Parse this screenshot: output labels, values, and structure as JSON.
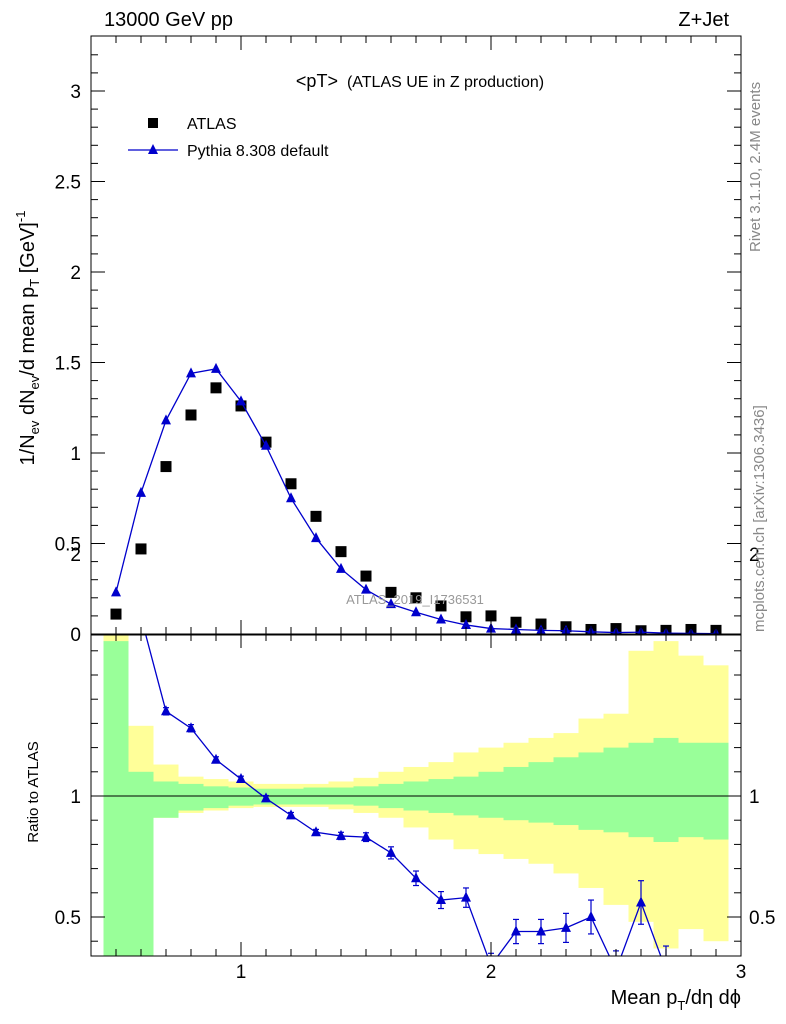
{
  "header": {
    "left": "13000 GeV pp",
    "right": "Z+Jet"
  },
  "side_texts": {
    "rivet": "Rivet 3.1.10,  2.4M events",
    "mcplots": "mcplots.cern.ch [arXiv:1306.3436]"
  },
  "watermark": "ATLAS_2019_I1736531",
  "chart_data": [
    {
      "type": "scatter",
      "panel": "main",
      "title": "<pT> (ATLAS UE in Z production)",
      "title_main": "<pT>",
      "title_sub": "(ATLAS UE in Z production)",
      "ylabel_parts": [
        "1/N",
        "ev",
        " dN",
        "ev",
        "/d mean p",
        "T",
        " [GeV]",
        "-1"
      ],
      "xlim": [
        0.4,
        3.0
      ],
      "ylim": [
        0,
        3.3
      ],
      "y_ticks": [
        0,
        0.5,
        1,
        1.5,
        2,
        2.5,
        3
      ],
      "y_tick_labels": [
        "0",
        "0.5",
        "1",
        "1.5",
        "2",
        "2.5",
        "3"
      ],
      "legend": {
        "position": "top-left",
        "entries": [
          "ATLAS",
          "Pythia 8.308 default"
        ]
      },
      "series": [
        {
          "name": "ATLAS",
          "marker": "square",
          "color": "#000000",
          "x": [
            0.5,
            0.6,
            0.7,
            0.8,
            0.9,
            1.0,
            1.1,
            1.2,
            1.3,
            1.4,
            1.5,
            1.6,
            1.7,
            1.8,
            1.9,
            2.0,
            2.1,
            2.2,
            2.3,
            2.4,
            2.5,
            2.6,
            2.7,
            2.8,
            2.9
          ],
          "y": [
            0.11,
            0.47,
            0.925,
            1.21,
            1.36,
            1.26,
            1.06,
            0.83,
            0.65,
            0.455,
            0.32,
            0.23,
            0.2,
            0.155,
            0.095,
            0.1,
            0.065,
            0.055,
            0.04,
            0.025,
            0.03,
            0.018,
            0.02,
            0.025,
            0.02
          ]
        },
        {
          "name": "Pythia 8.308 default",
          "marker": "triangle",
          "color": "#0000cc",
          "x": [
            0.5,
            0.6,
            0.7,
            0.8,
            0.9,
            1.0,
            1.1,
            1.2,
            1.3,
            1.4,
            1.5,
            1.6,
            1.7,
            1.8,
            1.9,
            2.0,
            2.1,
            2.2,
            2.3,
            2.4,
            2.5,
            2.6,
            2.7,
            2.8,
            2.9
          ],
          "y": [
            0.23,
            0.78,
            1.18,
            1.44,
            1.465,
            1.285,
            1.04,
            0.75,
            0.53,
            0.36,
            0.245,
            0.165,
            0.12,
            0.08,
            0.05,
            0.03,
            0.025,
            0.02,
            0.018,
            0.012,
            0.008,
            0.01,
            0.005,
            0.003,
            0.002
          ]
        }
      ]
    },
    {
      "type": "line",
      "panel": "ratio",
      "xlabel_parts": [
        "Mean p",
        "T",
        "/dη dϕ"
      ],
      "ylabel": "Ratio to ATLAS",
      "xlim": [
        0.4,
        3.0
      ],
      "ylim": [
        0.33,
        2.22
      ],
      "x_ticks": [
        1,
        2,
        3
      ],
      "x_tick_labels": [
        "1",
        "2",
        "3"
      ],
      "y_ticks": [
        0.5,
        1,
        2
      ],
      "y_tick_labels": [
        "0.5",
        "1",
        "2"
      ],
      "bands": {
        "bin_edges": [
          0.45,
          0.55,
          0.65,
          0.75,
          0.85,
          0.95,
          1.05,
          1.15,
          1.25,
          1.35,
          1.45,
          1.55,
          1.65,
          1.75,
          1.85,
          1.95,
          2.05,
          2.15,
          2.25,
          2.35,
          2.45,
          2.55,
          2.65,
          2.75,
          2.85,
          2.95
        ],
        "stat_color": "#99ff99",
        "syst_color": "#ffff99",
        "green_low": [
          0.33,
          0.33,
          0.91,
          0.94,
          0.95,
          0.96,
          0.965,
          0.965,
          0.965,
          0.965,
          0.96,
          0.95,
          0.94,
          0.93,
          0.92,
          0.91,
          0.9,
          0.89,
          0.88,
          0.86,
          0.85,
          0.83,
          0.81,
          0.83,
          0.82
        ],
        "green_high": [
          1.64,
          1.1,
          1.06,
          1.05,
          1.04,
          1.035,
          1.03,
          1.03,
          1.035,
          1.035,
          1.04,
          1.05,
          1.06,
          1.07,
          1.08,
          1.1,
          1.12,
          1.14,
          1.16,
          1.18,
          1.2,
          1.22,
          1.24,
          1.22,
          1.22
        ],
        "yellow_low": [
          0.42,
          0.8,
          0.91,
          0.93,
          0.94,
          0.95,
          0.955,
          0.955,
          0.955,
          0.945,
          0.93,
          0.91,
          0.87,
          0.82,
          0.78,
          0.76,
          0.74,
          0.72,
          0.68,
          0.62,
          0.55,
          0.48,
          0.37,
          0.45,
          0.4
        ],
        "yellow_high": [
          2.05,
          1.29,
          1.13,
          1.08,
          1.07,
          1.06,
          1.05,
          1.05,
          1.05,
          1.06,
          1.075,
          1.1,
          1.12,
          1.14,
          1.18,
          1.2,
          1.22,
          1.24,
          1.26,
          1.32,
          1.34,
          1.6,
          1.64,
          1.58,
          1.54
        ]
      },
      "series": [
        {
          "name": "Pythia 8.308 default",
          "color": "#0000cc",
          "x": [
            0.5,
            0.6,
            0.7,
            0.8,
            0.9,
            1.0,
            1.1,
            1.2,
            1.3,
            1.4,
            1.5,
            1.6,
            1.7,
            1.8,
            1.9,
            2.0,
            2.1,
            2.2,
            2.3,
            2.4,
            2.5,
            2.6,
            2.7
          ],
          "y": [
            2.11,
            1.74,
            1.35,
            1.28,
            1.15,
            1.07,
            0.99,
            0.92,
            0.85,
            0.835,
            0.83,
            0.765,
            0.66,
            0.57,
            0.58,
            0.3,
            0.44,
            0.44,
            0.455,
            0.5,
            0.28,
            0.56,
            0.28
          ],
          "err": [
            0.03,
            0.02,
            0.015,
            0.015,
            0.012,
            0.012,
            0.012,
            0.012,
            0.012,
            0.015,
            0.018,
            0.025,
            0.03,
            0.035,
            0.04,
            0.05,
            0.05,
            0.05,
            0.06,
            0.07,
            0.08,
            0.09,
            0.1
          ]
        }
      ]
    }
  ]
}
